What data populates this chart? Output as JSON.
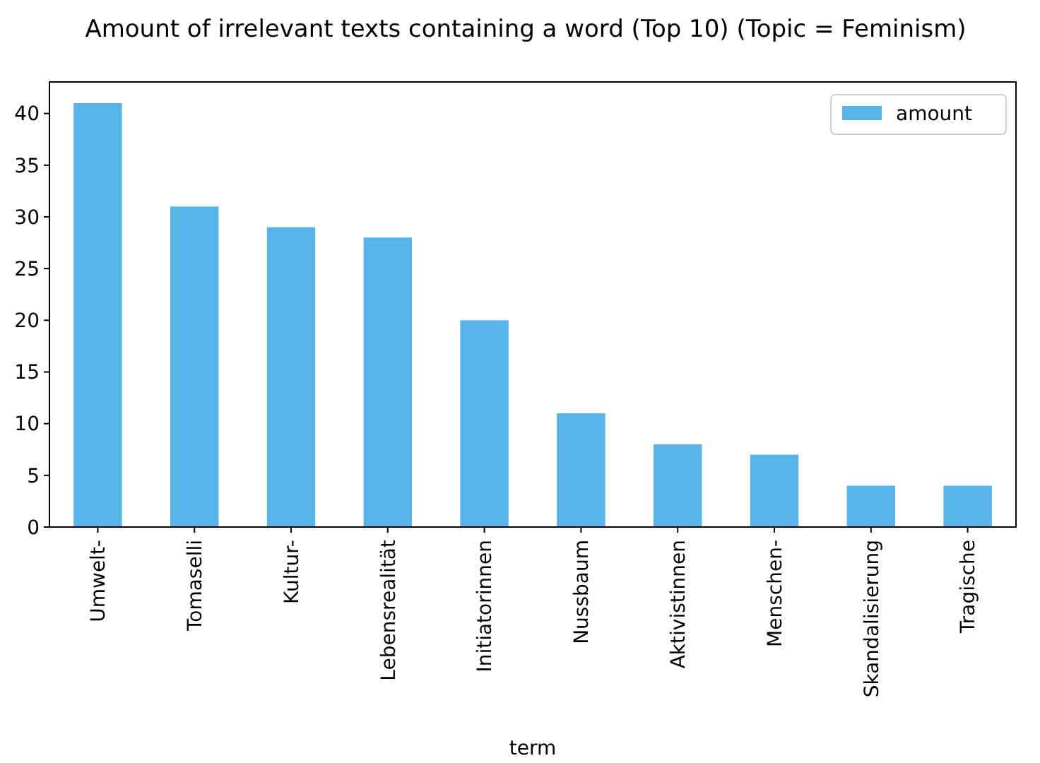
{
  "chart_data": {
    "type": "bar",
    "title": "Amount of irrelevant texts containing a word (Top 10) (Topic = Feminism)",
    "xlabel": "term",
    "categories": [
      "Umwelt-",
      "Tomaselli",
      "Kultur-",
      "Lebensrealität",
      "Initiatorinnen",
      "Nussbaum",
      "Aktivistinnen",
      "Menschen-",
      "Skandalisierung",
      "Tragische"
    ],
    "series": [
      {
        "name": "amount",
        "color": "#56b4e9",
        "values": [
          41,
          31,
          29,
          28,
          20,
          11,
          8,
          7,
          4,
          4
        ]
      }
    ],
    "ylim": [
      0,
      43.05
    ],
    "yticks": [
      0,
      5,
      10,
      15,
      20,
      25,
      30,
      35,
      40
    ],
    "legend": "top right"
  }
}
